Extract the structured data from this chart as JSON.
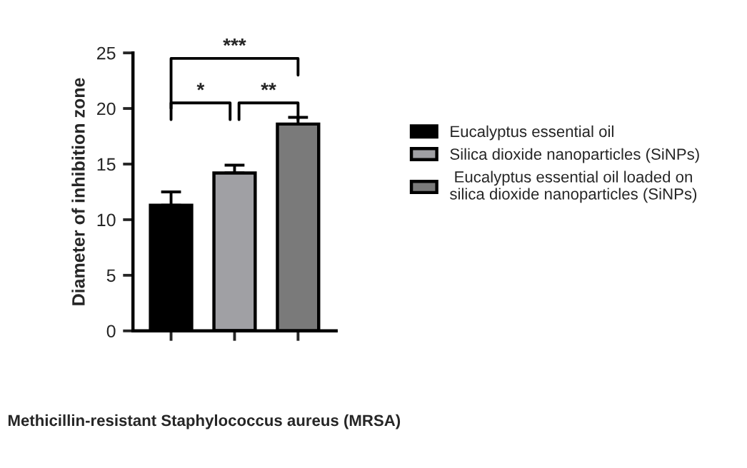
{
  "chart_data": {
    "type": "bar",
    "ylabel": "Diameter of inhibition zone",
    "categories": [
      null,
      null,
      null
    ],
    "series": [
      {
        "name": "Eucalyptus essential oil",
        "color": "#000000",
        "values": [
          11.3,
          null,
          null
        ],
        "errors": [
          [
            11.3,
            12.5
          ],
          null,
          null
        ]
      },
      {
        "name": "Silica dioxide nanoparticles (SiNPs)",
        "color": "#a0a0a4",
        "values": [
          null,
          14.2,
          null
        ],
        "errors": [
          null,
          [
            14.2,
            14.9
          ],
          null
        ]
      },
      {
        "name": " Eucalyptus essential oil loaded on\nsilica dioxide nanoparticles (SiNPs)",
        "color": "#7a7a7a",
        "values": [
          null,
          null,
          18.6
        ],
        "errors": [
          null,
          null,
          [
            18.6,
            19.2
          ]
        ]
      }
    ],
    "ylim": [
      0,
      25
    ],
    "yticks": [
      0,
      5,
      10,
      15,
      20,
      25
    ],
    "grid": false,
    "legend": "right",
    "annotations": [
      "*",
      "**",
      "***",
      "Methicillin-resistant Staphylococcus aureus (MRSA)"
    ]
  }
}
